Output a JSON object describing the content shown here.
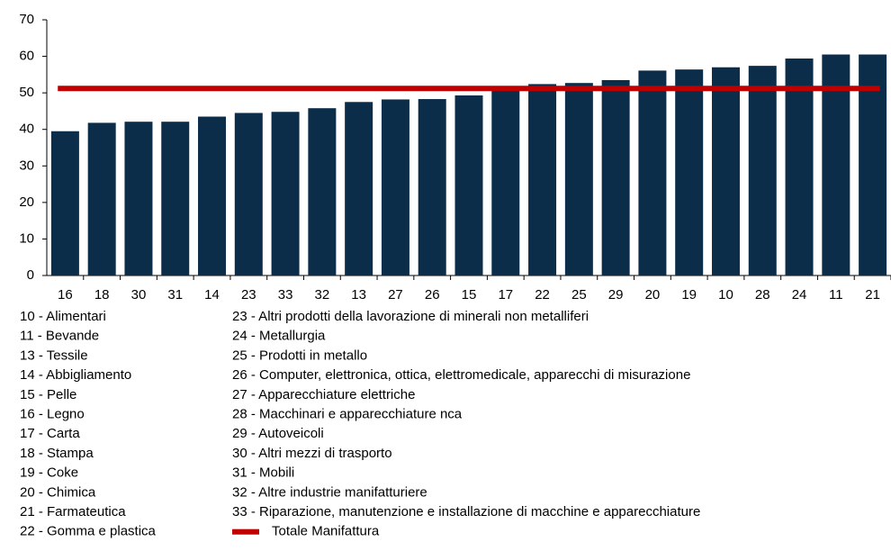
{
  "chart_data": {
    "type": "bar",
    "categories": [
      "16",
      "18",
      "30",
      "31",
      "14",
      "23",
      "33",
      "32",
      "13",
      "27",
      "26",
      "15",
      "17",
      "22",
      "25",
      "29",
      "20",
      "19",
      "10",
      "28",
      "24",
      "11",
      "21"
    ],
    "values": [
      39.5,
      41.8,
      42.1,
      42.1,
      43.5,
      44.5,
      44.8,
      45.8,
      47.5,
      48.2,
      48.3,
      49.3,
      50.7,
      52.4,
      52.7,
      53.5,
      56.1,
      56.4,
      57.0,
      57.4,
      59.4,
      60.5,
      60.5
    ],
    "color": "#0b2d4a",
    "ylim": [
      0,
      70
    ],
    "yticks": [
      0,
      10,
      20,
      30,
      40,
      50,
      60,
      70
    ],
    "reference_line": {
      "name": "Totale Manifattura",
      "value": 51.2,
      "color": "#c00000"
    },
    "codes": [
      "10 - Alimentari",
      "11 - Bevande",
      "13 - Tessile",
      "14 - Abbigliamento",
      "15 - Pelle",
      "16 - Legno",
      "17 - Carta",
      "18 - Stampa",
      "19 - Coke",
      "20 - Chimica",
      "21 - Farmateutica",
      "22 - Gomma e plastica",
      "23 - Altri prodotti della lavorazione di minerali non metalliferi",
      "24 - Metallurgia",
      "25 - Prodotti in metallo",
      "26 - Computer, elettronica, ottica, elettromedicale, apparecchi di misurazione",
      "27 - Apparecchiature elettriche",
      "28 - Macchinari e apparecchiature nca",
      "29 - Autoveicoli",
      "30 - Altri mezzi di trasporto",
      "31 - Mobili",
      "32 - Altre industrie manifatturiere",
      "33 - Riparazione, manutenzione e installazione di macchine e apparecchiature"
    ]
  }
}
